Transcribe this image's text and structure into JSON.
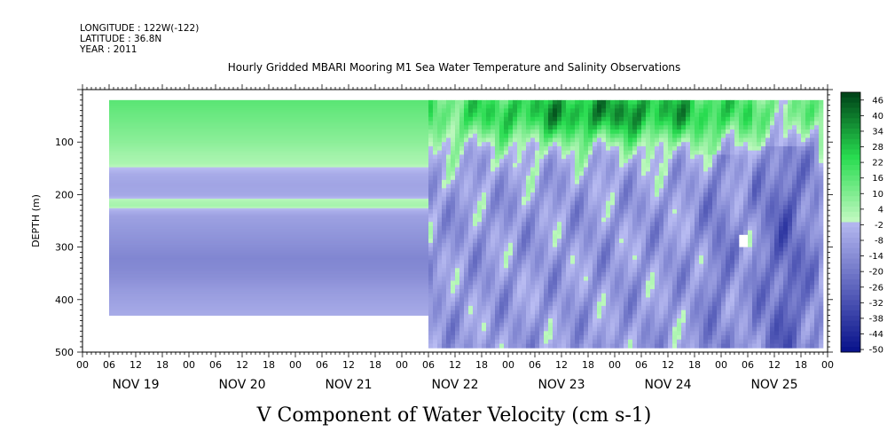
{
  "header": {
    "longitude": "LONGITUDE : 122W(-122)",
    "latitude": "LATITUDE : 36.8N",
    "year": "YEAR : 2011",
    "title": "Hourly Gridded MBARI Mooring M1 Sea Water Temperature and Salinity Observations"
  },
  "chart_data": {
    "type": "heatmap",
    "title": "Hourly Gridded MBARI Mooring M1 Sea Water Temperature and Salinity Observations",
    "xlabel": "",
    "ylabel": "DEPTH (m)",
    "zlabel": "V Component of Water Velocity (cm s-1)",
    "x_start": "2011-11-19T00:00",
    "x_end": "2011-11-26T00:00",
    "xlim_hours": [
      0,
      168
    ],
    "ylim": [
      500,
      0
    ],
    "y_reversed": true,
    "y_ticks": [
      100,
      200,
      300,
      400,
      500
    ],
    "x_tick_hours": [
      "00",
      "06",
      "12",
      "18"
    ],
    "day_labels": [
      "NOV 19",
      "NOV 20",
      "NOV 21",
      "NOV 22",
      "NOV 23",
      "NOV 24",
      "NOV 25"
    ],
    "colorbar": {
      "levels": [
        48,
        46,
        44,
        42,
        40,
        38,
        36,
        34,
        32,
        30,
        28,
        26,
        24,
        22,
        20,
        18,
        16,
        14,
        12,
        10,
        8,
        6,
        4,
        2,
        0,
        -2,
        -4,
        -6,
        -8,
        -10,
        -12,
        -14,
        -16,
        -18,
        -20,
        -22,
        -24,
        -26,
        -28,
        -30,
        -32,
        -34,
        -36,
        -38,
        -40,
        -42,
        -44,
        -46,
        -48,
        -50
      ],
      "tick_labels": [
        "46",
        "40",
        "34",
        "28",
        "22",
        "16",
        "10",
        "4",
        "-2",
        "-8",
        "-14",
        "-20",
        "-26",
        "-32",
        "-38",
        "-44",
        "-50"
      ]
    },
    "depth_profile_early": {
      "note_range_hours": [
        6,
        78
      ],
      "depths": [
        20,
        40,
        60,
        80,
        100,
        120,
        140,
        160,
        180,
        200,
        210,
        220,
        230,
        240,
        260,
        280,
        300,
        320,
        340,
        360,
        380,
        400,
        420,
        430
      ],
      "values": [
        16,
        14,
        12,
        10,
        8,
        5,
        3,
        -5,
        -7,
        -6,
        2,
        4,
        -4,
        -8,
        -10,
        -12,
        -14,
        -16,
        -15,
        -13,
        -10,
        -8,
        -6,
        -5
      ]
    }
  }
}
